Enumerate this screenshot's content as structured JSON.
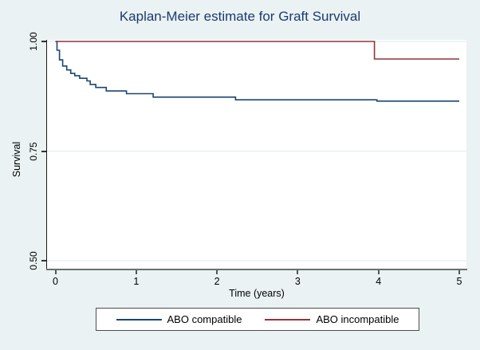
{
  "colors": {
    "figure_background": "#eaf2f3",
    "plot_background": "#ffffff",
    "gridline": "#dfebee",
    "title_text": "#1c3a6e",
    "series_compatible": "#1a476f",
    "series_incompatible": "#90353b"
  },
  "legend": {
    "entries": [
      {
        "label": "ABO compatible",
        "color": "#1a476f"
      },
      {
        "label": "ABO incompatible",
        "color": "#90353b"
      }
    ]
  },
  "chart_data": {
    "type": "line",
    "subtype": "kaplan-meier-step",
    "title": "Kaplan-Meier estimate for Graft Survival",
    "xlabel": "Time (years)",
    "ylabel": "Survival",
    "xlim": [
      0,
      5
    ],
    "ylim": [
      0.5,
      1.0
    ],
    "grid": true,
    "legend_position": "bottom",
    "xticks": [
      {
        "value": 0,
        "label": "0"
      },
      {
        "value": 1,
        "label": "1"
      },
      {
        "value": 2,
        "label": "2"
      },
      {
        "value": 3,
        "label": "3"
      },
      {
        "value": 4,
        "label": "4"
      },
      {
        "value": 5,
        "label": "5"
      }
    ],
    "yticks": [
      {
        "value": 1.0,
        "label": "1.00"
      },
      {
        "value": 0.75,
        "label": "0.75"
      },
      {
        "value": 0.5,
        "label": "0.50"
      }
    ],
    "series": [
      {
        "name": "ABO compatible",
        "color": "#1a476f",
        "steps": [
          [
            0,
            1.0
          ],
          [
            0.02,
            0.98
          ],
          [
            0.05,
            0.958
          ],
          [
            0.09,
            0.944
          ],
          [
            0.14,
            0.935
          ],
          [
            0.19,
            0.927
          ],
          [
            0.24,
            0.922
          ],
          [
            0.3,
            0.916
          ],
          [
            0.39,
            0.91
          ],
          [
            0.43,
            0.902
          ],
          [
            0.5,
            0.895
          ],
          [
            0.63,
            0.887
          ],
          [
            0.88,
            0.881
          ],
          [
            1.21,
            0.873
          ],
          [
            2.23,
            0.867
          ],
          [
            3.98,
            0.864
          ],
          [
            5.0,
            0.864
          ]
        ]
      },
      {
        "name": "ABO incompatible",
        "color": "#90353b",
        "steps": [
          [
            0,
            1.0
          ],
          [
            3.95,
            0.96
          ],
          [
            5.0,
            0.96
          ]
        ]
      }
    ]
  }
}
